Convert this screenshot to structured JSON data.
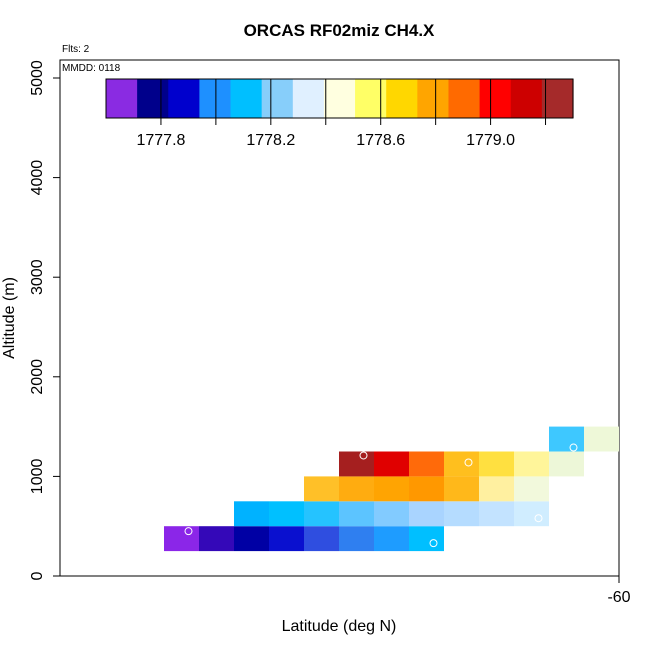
{
  "chart_data": {
    "type": "heatmap",
    "title": "ORCAS RF02miz CH4.X",
    "flights_note": "Flts: 2",
    "date_note": "MMDD: 0118",
    "xlabel": "Latitude (deg N)",
    "ylabel": "Altitude (m)",
    "x_tick_labels": [
      "-60"
    ],
    "ylim": [
      0,
      5200
    ],
    "y_ticks": [
      0,
      1000,
      2000,
      3000,
      4000,
      5000
    ],
    "grid": false,
    "colorbar": {
      "range": [
        1777.6,
        1779.3
      ],
      "tick_values": [
        1777.8,
        1778.0,
        1778.2,
        1778.4,
        1778.6,
        1778.8,
        1779.0,
        1779.2
      ],
      "labels": [
        "1777.8",
        "1778.2",
        "1778.6",
        "1779.0"
      ],
      "colors": [
        "#8a2be2",
        "#00008b",
        "#0000cd",
        "#1e90ff",
        "#00bfff",
        "#87cefa",
        "#e0f0ff",
        "#ffffe0",
        "#ffff66",
        "#ffd700",
        "#ffa500",
        "#ff6a00",
        "#ff0000",
        "#cd0000",
        "#a52a2a"
      ]
    },
    "cells": [
      {
        "row": 0,
        "col": 0,
        "altitude_m": 375,
        "color": "#8b26e8"
      },
      {
        "row": 0,
        "col": 1,
        "altitude_m": 375,
        "color": "#3408b8"
      },
      {
        "row": 0,
        "col": 2,
        "altitude_m": 375,
        "color": "#0000a4"
      },
      {
        "row": 0,
        "col": 3,
        "altitude_m": 375,
        "color": "#0a10cf"
      },
      {
        "row": 0,
        "col": 4,
        "altitude_m": 375,
        "color": "#2f4ee0"
      },
      {
        "row": 0,
        "col": 5,
        "altitude_m": 375,
        "color": "#2f7ff0"
      },
      {
        "row": 0,
        "col": 6,
        "altitude_m": 375,
        "color": "#1e9cff"
      },
      {
        "row": 0,
        "col": 7,
        "altitude_m": 375,
        "color": "#00bfff"
      },
      {
        "row": 1,
        "col": 2,
        "altitude_m": 625,
        "color": "#00b2ff"
      },
      {
        "row": 1,
        "col": 3,
        "altitude_m": 625,
        "color": "#00c0ff"
      },
      {
        "row": 1,
        "col": 4,
        "altitude_m": 625,
        "color": "#25c3ff"
      },
      {
        "row": 1,
        "col": 5,
        "altitude_m": 625,
        "color": "#5cc4ff"
      },
      {
        "row": 1,
        "col": 6,
        "altitude_m": 625,
        "color": "#82cbff"
      },
      {
        "row": 1,
        "col": 7,
        "altitude_m": 625,
        "color": "#a9d4ff"
      },
      {
        "row": 1,
        "col": 8,
        "altitude_m": 625,
        "color": "#b5dcff"
      },
      {
        "row": 1,
        "col": 9,
        "altitude_m": 625,
        "color": "#c3e3ff"
      },
      {
        "row": 1,
        "col": 10,
        "altitude_m": 625,
        "color": "#d0edff"
      },
      {
        "row": 2,
        "col": 4,
        "altitude_m": 875,
        "color": "#ffc028"
      },
      {
        "row": 2,
        "col": 5,
        "altitude_m": 875,
        "color": "#ffac10"
      },
      {
        "row": 2,
        "col": 6,
        "altitude_m": 875,
        "color": "#ffa402"
      },
      {
        "row": 2,
        "col": 7,
        "altitude_m": 875,
        "color": "#ff9800"
      },
      {
        "row": 2,
        "col": 8,
        "altitude_m": 875,
        "color": "#ffb81a"
      },
      {
        "row": 2,
        "col": 9,
        "altitude_m": 875,
        "color": "#fff0a0"
      },
      {
        "row": 2,
        "col": 10,
        "altitude_m": 875,
        "color": "#f2f9dc"
      },
      {
        "row": 3,
        "col": 5,
        "altitude_m": 1125,
        "color": "#a51f1f"
      },
      {
        "row": 3,
        "col": 6,
        "altitude_m": 1125,
        "color": "#e00000"
      },
      {
        "row": 3,
        "col": 7,
        "altitude_m": 1125,
        "color": "#ff6a0a"
      },
      {
        "row": 3,
        "col": 8,
        "altitude_m": 1125,
        "color": "#ffbf1e"
      },
      {
        "row": 3,
        "col": 9,
        "altitude_m": 1125,
        "color": "#ffe040"
      },
      {
        "row": 3,
        "col": 10,
        "altitude_m": 1125,
        "color": "#fff59a"
      },
      {
        "row": 3,
        "col": 11,
        "altitude_m": 1125,
        "color": "#edf7d8"
      },
      {
        "row": 4,
        "col": 11,
        "altitude_m": 1375,
        "color": "#3ec8ff"
      },
      {
        "row": 4,
        "col": 12,
        "altitude_m": 1375,
        "color": "#eef8d8"
      }
    ],
    "markers": [
      {
        "col": 0,
        "row": 0,
        "altitude_m": 450
      },
      {
        "col": 7,
        "row": 0,
        "altitude_m": 330
      },
      {
        "col": 10,
        "row": 1,
        "altitude_m": 580
      },
      {
        "col": 5,
        "row": 3,
        "altitude_m": 1210
      },
      {
        "col": 8,
        "row": 3,
        "altitude_m": 1140
      },
      {
        "col": 11,
        "row": 4,
        "altitude_m": 1290
      }
    ]
  }
}
